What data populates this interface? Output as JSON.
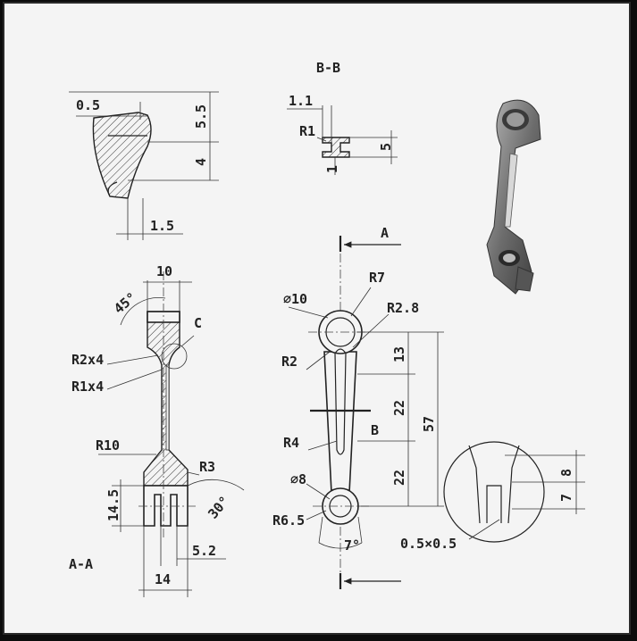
{
  "views": {
    "section_aa": "A-A",
    "section_bb": "B-B",
    "detail": "C",
    "cut_marker": "A",
    "cut_b": "B"
  },
  "dims": {
    "d_0_5": "0.5",
    "d_5_5": "5.5",
    "d_4": "4",
    "d_1_5": "1.5",
    "d_1_1": "1.1",
    "d_r1": "R1",
    "d_5": "5",
    "d_1": "1",
    "d_10": "10",
    "d_45": "45°",
    "d_r2x4": "R2x4",
    "d_r1x4": "R1x4",
    "d_r10": "R10",
    "d_r3": "R3",
    "d_14_5": "14.5",
    "d_30": "30°",
    "d_5_2": "5.2",
    "d_14": "14",
    "d_phi10": "∅10",
    "d_r7": "R7",
    "d_r2_8": "R2.8",
    "d_r2": "R2",
    "d_13": "13",
    "d_22a": "22",
    "d_57": "57",
    "d_r4": "R4",
    "d_22b": "22",
    "d_phi8": "∅8",
    "d_r6_5": "R6.5",
    "d_7deg": "7°",
    "d_8": "8",
    "d_7": "7",
    "d_chamfer": "0.5×0.5"
  },
  "colors": {
    "paper": "#f4f4f4",
    "ink": "#222222",
    "frame": "#0c0c0c"
  }
}
